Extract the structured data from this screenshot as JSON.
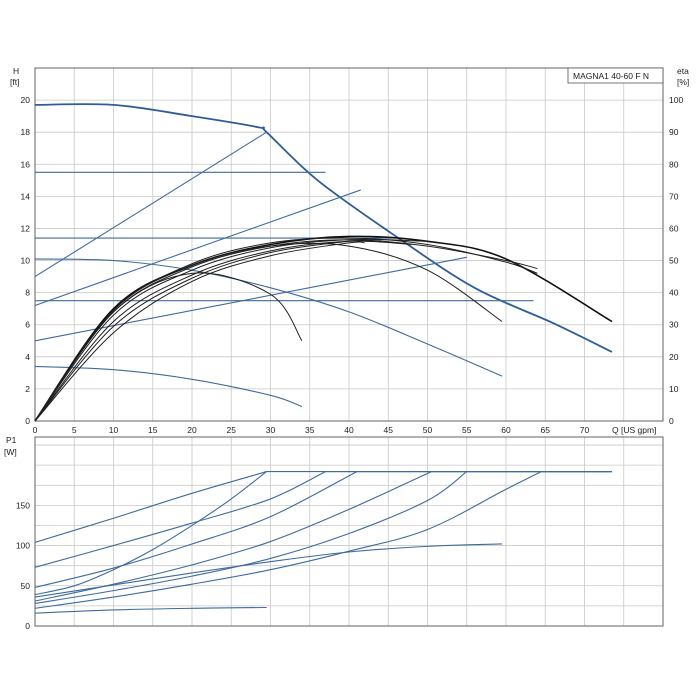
{
  "chart_data": [
    {
      "type": "line",
      "title": "MAGNA1 40-60 F N",
      "ylabel": "H",
      "ylabel_unit": "[ft]",
      "y2label": "eta",
      "y2label_unit": "[%]",
      "xlabel": "Q [US gpm]",
      "xlim": [
        0,
        80
      ],
      "ylim": [
        0,
        22
      ],
      "y2lim": [
        0,
        110
      ],
      "x_ticks": [
        0,
        5,
        10,
        15,
        20,
        25,
        30,
        35,
        40,
        45,
        50,
        55,
        60,
        65,
        70
      ],
      "y_ticks": [
        0,
        2,
        4,
        6,
        8,
        10,
        12,
        14,
        16,
        18,
        20
      ],
      "y2_ticks": [
        0,
        10,
        20,
        30,
        40,
        50,
        60,
        70,
        80,
        90,
        100
      ],
      "grid": true,
      "head_curves": [
        {
          "x": [
            0,
            10,
            20,
            28.5,
            29.5,
            36,
            46,
            56,
            66,
            73.5
          ],
          "y": [
            19.7,
            19.7,
            19.0,
            18.3,
            18.0,
            15.0,
            11.5,
            8.3,
            6.1,
            4.3
          ]
        },
        {
          "x": [
            0,
            37
          ],
          "y": [
            15.5,
            15.5
          ]
        },
        {
          "x": [
            0,
            46
          ],
          "y": [
            11.4,
            11.4
          ]
        },
        {
          "x": [
            0,
            63.5
          ],
          "y": [
            7.5,
            7.5
          ]
        },
        {
          "x": [
            0,
            10,
            20,
            30,
            40,
            50,
            59.5
          ],
          "y": [
            10.1,
            10.0,
            9.4,
            8.3,
            6.8,
            4.8,
            2.8
          ]
        },
        {
          "x": [
            0,
            10,
            20,
            30,
            34
          ],
          "y": [
            3.4,
            3.2,
            2.6,
            1.6,
            0.9
          ]
        },
        {
          "x": [
            0,
            29.5
          ],
          "y": [
            9.0,
            18.0
          ]
        },
        {
          "x": [
            0,
            41.5
          ],
          "y": [
            7.2,
            14.4
          ]
        },
        {
          "x": [
            0,
            55
          ],
          "y": [
            5.0,
            10.2
          ]
        }
      ],
      "efficiency_curves": [
        {
          "x": [
            0,
            10,
            20,
            30,
            40,
            50,
            60,
            73.5
          ],
          "y": [
            0,
            35.0,
            48.5,
            55.0,
            57.5,
            56.0,
            50.5,
            31.0
          ]
        },
        {
          "x": [
            0,
            10,
            20,
            30,
            40,
            50,
            59.5
          ],
          "y": [
            0,
            34.5,
            48.5,
            54.5,
            54.5,
            47.0,
            31.0
          ]
        },
        {
          "x": [
            0,
            10,
            20,
            30,
            34
          ],
          "y": [
            0,
            34.0,
            46.0,
            39.5,
            25.0
          ]
        },
        {
          "x": [
            0,
            10,
            20,
            30,
            40,
            50,
            60,
            64
          ],
          "y": [
            0,
            34.5,
            49.0,
            55.5,
            57.0,
            55.0,
            49.5,
            46.0
          ]
        },
        {
          "x": [
            0,
            10,
            20,
            30,
            40,
            50,
            60,
            64
          ],
          "y": [
            0,
            34.0,
            48.0,
            54.5,
            56.5,
            54.5,
            50.0,
            47.5
          ]
        },
        {
          "x": [
            0,
            10,
            20,
            30,
            40,
            50
          ],
          "y": [
            0,
            33.0,
            47.0,
            54.0,
            56.5,
            56.0
          ]
        },
        {
          "x": [
            0,
            10,
            20,
            30,
            40,
            48
          ],
          "y": [
            0,
            31.0,
            45.5,
            53.0,
            56.0,
            55.0
          ]
        },
        {
          "x": [
            0,
            10,
            20,
            30,
            40,
            43
          ],
          "y": [
            0,
            29.5,
            44.5,
            52.5,
            56.0,
            56.0
          ]
        },
        {
          "x": [
            0,
            10,
            20,
            30,
            40,
            42
          ],
          "y": [
            0,
            27.5,
            43.5,
            51.5,
            55.5,
            55.5
          ]
        }
      ]
    },
    {
      "type": "line",
      "ylabel": "P1",
      "ylabel_unit": "[W]",
      "xlim": [
        0,
        80
      ],
      "ylim": [
        0,
        235
      ],
      "y_ticks": [
        0,
        50,
        100,
        150
      ],
      "grid": true,
      "power_curves": [
        {
          "x": [
            0,
            10,
            20,
            29.5,
            73.5
          ],
          "y": [
            104,
            134,
            165,
            192,
            192
          ]
        },
        {
          "x": [
            0,
            10,
            20,
            29.5
          ],
          "y": [
            16,
            20,
            22,
            23
          ]
        },
        {
          "x": [
            0,
            10,
            20,
            30,
            40,
            50,
            59.5
          ],
          "y": [
            36,
            51,
            66,
            80,
            92,
            99,
            102
          ]
        },
        {
          "x": [
            0,
            10,
            20,
            30,
            37,
            73.5
          ],
          "y": [
            73,
            100,
            128,
            158,
            192,
            192
          ]
        },
        {
          "x": [
            0,
            10,
            20,
            30,
            41,
            73.5
          ],
          "y": [
            48,
            72,
            102,
            136,
            192,
            192
          ]
        },
        {
          "x": [
            0,
            10,
            20,
            30,
            40,
            50.5,
            73.5
          ],
          "y": [
            31,
            52,
            76,
            105,
            145,
            192,
            192
          ]
        },
        {
          "x": [
            0,
            10,
            20,
            30,
            40,
            50,
            55,
            73.5
          ],
          "y": [
            28,
            44,
            62,
            84,
            115,
            156,
            192,
            192
          ]
        },
        {
          "x": [
            0,
            10,
            20,
            30,
            40,
            50,
            60,
            64.5,
            73.5
          ],
          "y": [
            22,
            36,
            52,
            70,
            93,
            120,
            170,
            192,
            192
          ]
        },
        {
          "x": [
            0,
            5,
            10,
            15,
            20,
            25,
            29.5
          ],
          "y": [
            39,
            50,
            70,
            95,
            125,
            158,
            192
          ]
        }
      ]
    }
  ]
}
